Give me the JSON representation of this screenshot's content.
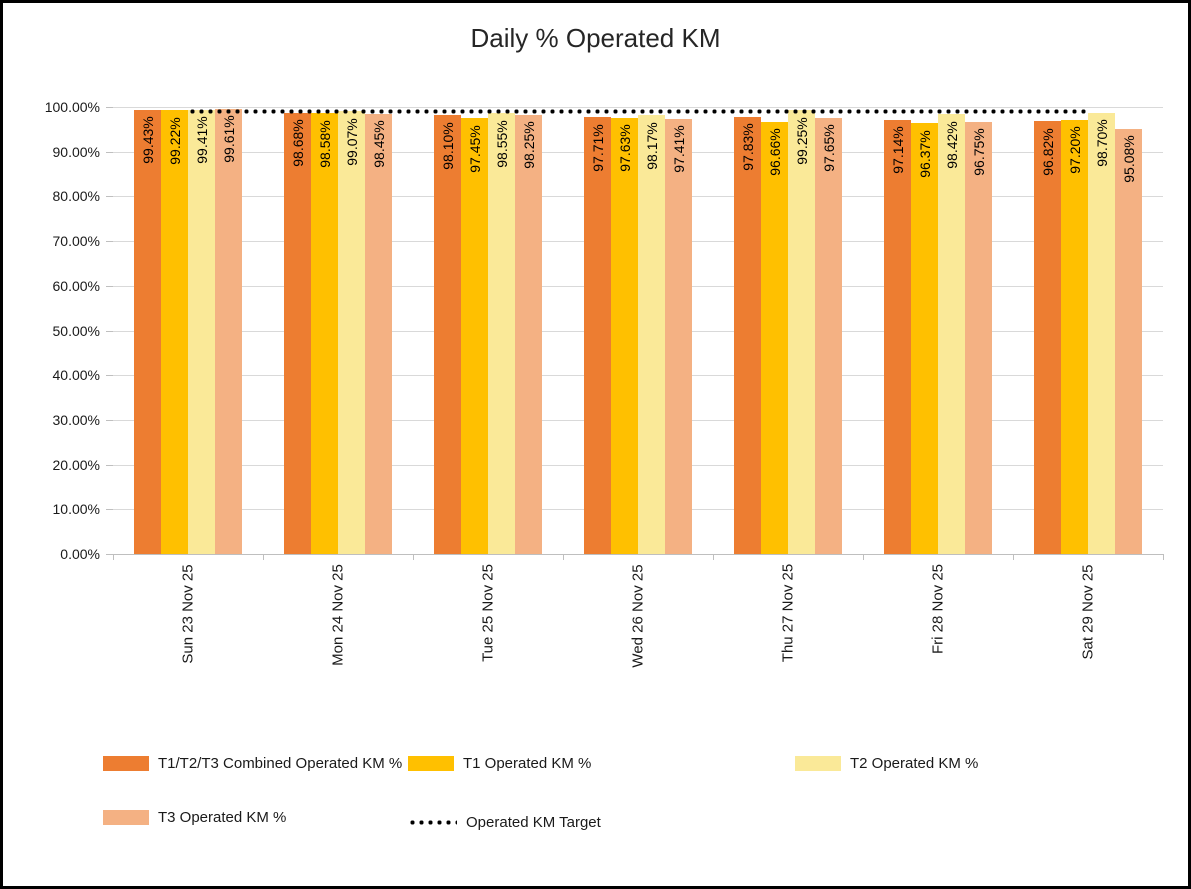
{
  "chart_data": {
    "type": "bar",
    "title": "Daily % Operated KM",
    "categories": [
      "Sun 23 Nov 25",
      "Mon 24 Nov 25",
      "Tue 25 Nov 25",
      "Wed 26 Nov 25",
      "Thu 27 Nov 25",
      "Fri 28 Nov 25",
      "Sat 29 Nov 25"
    ],
    "series": [
      {
        "name": "T1/T2/T3 Combined Operated KM %",
        "color": "#ED7D31",
        "values": [
          99.43,
          98.68,
          98.1,
          97.71,
          97.83,
          97.14,
          96.82
        ]
      },
      {
        "name": "T1 Operated KM %",
        "color": "#FFC000",
        "values": [
          99.22,
          98.58,
          97.45,
          97.63,
          96.66,
          96.37,
          97.2
        ]
      },
      {
        "name": "T2 Operated KM %",
        "color": "#FAE998",
        "values": [
          99.41,
          99.07,
          98.55,
          98.17,
          99.25,
          98.42,
          98.7
        ]
      },
      {
        "name": "T3 Operated KM %",
        "color": "#F4B183",
        "values": [
          99.61,
          98.45,
          98.25,
          97.41,
          97.65,
          96.75,
          95.08
        ]
      }
    ],
    "target_line": {
      "name": "Operated KM Target",
      "value": 99.0,
      "color": "#000000",
      "style": "dotted"
    },
    "y_axis": {
      "min": 0,
      "max": 100,
      "step": 10,
      "tick_labels": [
        "0.00%",
        "10.00%",
        "20.00%",
        "30.00%",
        "40.00%",
        "50.00%",
        "60.00%",
        "70.00%",
        "80.00%",
        "90.00%",
        "100.00%"
      ]
    },
    "ylim": [
      0,
      100
    ],
    "data_label_format": "0.00%",
    "x_label_rotation_deg": 90,
    "legend_position": "bottom",
    "grid": true
  }
}
